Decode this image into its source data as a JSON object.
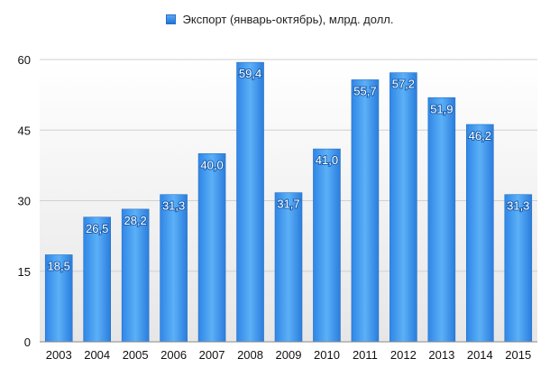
{
  "chart_data": {
    "type": "bar",
    "legend": "Экспорт (январь-октябрь), млрд. долл.",
    "legend_position": "top-center",
    "categories": [
      "2003",
      "2004",
      "2005",
      "2006",
      "2007",
      "2008",
      "2009",
      "2010",
      "2011",
      "2012",
      "2013",
      "2014",
      "2015"
    ],
    "series": [
      {
        "name": "Экспорт (январь-октябрь), млрд. долл.",
        "values": [
          18.5,
          26.5,
          28.2,
          31.3,
          40.0,
          59.4,
          31.7,
          41.0,
          55.7,
          57.2,
          51.9,
          46.2,
          31.3
        ],
        "labels": [
          "18,5",
          "26,5",
          "28,2",
          "31,3",
          "40,0",
          "59,4",
          "31,7",
          "41,0",
          "55,7",
          "57,2",
          "51,9",
          "46,2",
          "31,3"
        ]
      }
    ],
    "yticks": [
      "0",
      "15",
      "30",
      "45",
      "60"
    ],
    "ylim": [
      0,
      60
    ],
    "grid": true,
    "colors": {
      "bar_top": "#5aa9f5",
      "bar_bottom": "#1f74d8",
      "bar_edge": "#2a6fc4",
      "grid": "#d0d0d0"
    }
  }
}
